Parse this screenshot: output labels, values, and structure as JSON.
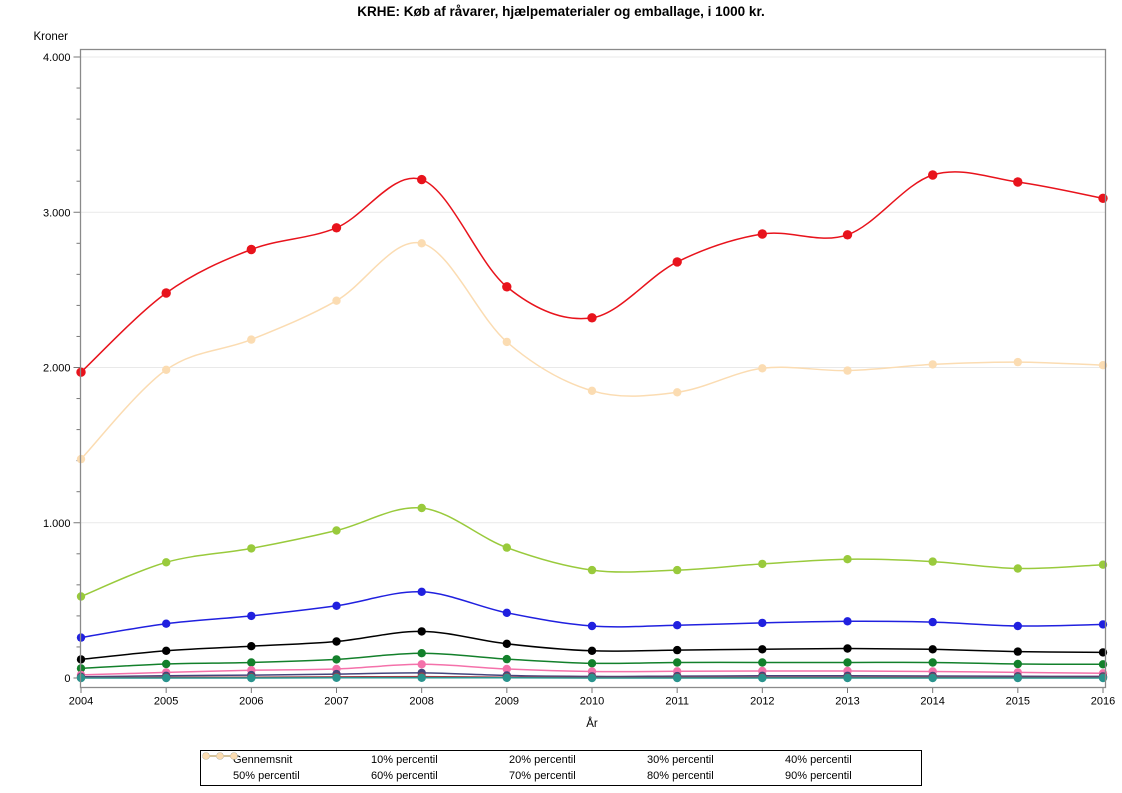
{
  "chart": {
    "title": "KRHE: Køb af råvarer, hjælpematerialer og emballage, i 1000 kr.",
    "y_unit": "Kroner",
    "xlabel": "År"
  },
  "chart_data": {
    "type": "line",
    "x": [
      2004,
      2005,
      2006,
      2007,
      2008,
      2009,
      2010,
      2011,
      2012,
      2013,
      2014,
      2015,
      2016
    ],
    "series": [
      {
        "name": "Gennemsnit",
        "color": "#e8131c",
        "values": [
          1970,
          2480,
          2760,
          2900,
          3210,
          2520,
          2320,
          2680,
          2860,
          2855,
          3240,
          3195,
          3090
        ]
      },
      {
        "name": "10% percentil",
        "color": "#2a938d",
        "values": [
          0,
          0,
          0,
          1,
          1,
          1,
          0,
          0,
          0,
          0,
          0,
          0,
          0
        ]
      },
      {
        "name": "20% percentil",
        "color": "#9c3d47",
        "values": [
          2,
          4,
          5,
          7,
          9,
          5,
          3,
          4,
          4,
          4,
          4,
          3,
          3
        ]
      },
      {
        "name": "30% percentil",
        "color": "#45457c",
        "values": [
          8,
          14,
          19,
          25,
          33,
          16,
          10,
          12,
          14,
          14,
          13,
          11,
          10
        ]
      },
      {
        "name": "40% percentil",
        "color": "#f471aa",
        "values": [
          20,
          36,
          50,
          58,
          88,
          58,
          42,
          43,
          45,
          45,
          42,
          36,
          30
        ]
      },
      {
        "name": "50% percentil",
        "color": "#13802b",
        "values": [
          62,
          90,
          100,
          120,
          160,
          122,
          95,
          100,
          100,
          100,
          100,
          90,
          88
        ]
      },
      {
        "name": "60% percentil",
        "color": "#000000",
        "values": [
          120,
          175,
          205,
          235,
          300,
          220,
          175,
          180,
          185,
          190,
          185,
          170,
          165
        ]
      },
      {
        "name": "70% percentil",
        "color": "#2020df",
        "values": [
          260,
          350,
          400,
          465,
          555,
          420,
          335,
          340,
          355,
          365,
          360,
          335,
          345
        ]
      },
      {
        "name": "80% percentil",
        "color": "#99ca3c",
        "values": [
          525,
          745,
          835,
          950,
          1095,
          840,
          695,
          695,
          735,
          765,
          750,
          705,
          730
        ]
      },
      {
        "name": "90% percentil",
        "color": "#fbdcb2",
        "values": [
          1410,
          1985,
          2180,
          2430,
          2800,
          2165,
          1850,
          1840,
          1995,
          1980,
          2020,
          2035,
          2015
        ]
      }
    ],
    "ylim": [
      0,
      4000
    ],
    "yticks": [
      {
        "v": 0,
        "label": "0"
      },
      {
        "v": 1000,
        "label": "1.000"
      },
      {
        "v": 2000,
        "label": "2.000"
      },
      {
        "v": 3000,
        "label": "3.000"
      },
      {
        "v": 4000,
        "label": "4.000"
      }
    ],
    "ytick_minor_step": 200,
    "grid": true,
    "legend_position": "bottom"
  }
}
